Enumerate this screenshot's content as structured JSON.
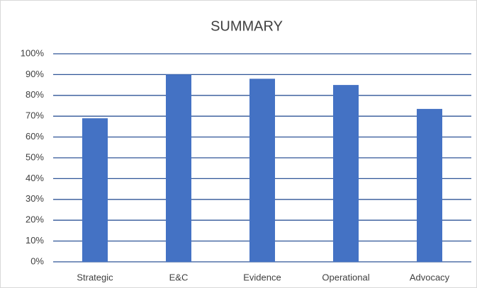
{
  "chart_data": {
    "type": "bar",
    "title": "SUMMARY",
    "categories": [
      "Strategic",
      "E&C",
      "Evidence",
      "Operational",
      "Advocacy"
    ],
    "values": [
      69,
      90,
      88,
      85,
      73.5
    ],
    "color": "#4472c4",
    "ylim": [
      0,
      100
    ],
    "yticks": [
      {
        "value": 0,
        "label": "0%"
      },
      {
        "value": 10,
        "label": "10%"
      },
      {
        "value": 20,
        "label": "20%"
      },
      {
        "value": 30,
        "label": "30%"
      },
      {
        "value": 40,
        "label": "40%"
      },
      {
        "value": 50,
        "label": "50%"
      },
      {
        "value": 60,
        "label": "60%"
      },
      {
        "value": 70,
        "label": "70%"
      },
      {
        "value": 80,
        "label": "80%"
      },
      {
        "value": 90,
        "label": "90%"
      },
      {
        "value": 100,
        "label": "100%"
      }
    ],
    "grid": true,
    "grid_color": "#2f5597"
  }
}
